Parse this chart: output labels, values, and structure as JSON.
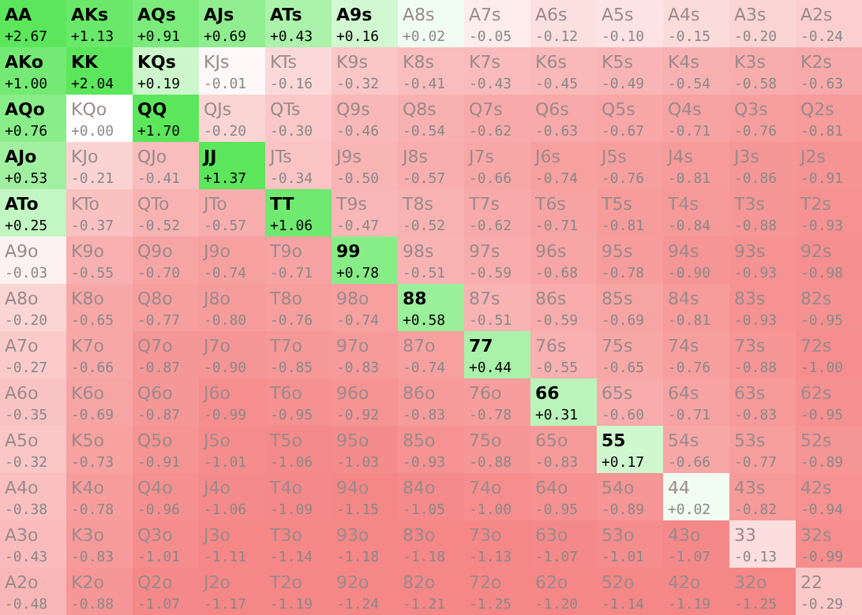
{
  "chart_data": {
    "type": "heatmap",
    "categories": [
      null,
      null,
      null,
      null,
      null,
      null,
      null,
      null,
      null,
      null,
      null,
      null,
      null
    ],
    "y_categories": [
      null,
      null,
      null,
      null,
      null,
      null,
      null,
      null,
      null,
      null,
      null,
      null,
      null
    ],
    "cells": [
      [
        2.67,
        1.13,
        0.91,
        0.69,
        0.43,
        0.16,
        0.02,
        -0.05,
        -0.12,
        -0.1,
        -0.15,
        -0.2,
        -0.24
      ],
      [
        1.0,
        2.04,
        0.19,
        -0.01,
        -0.16,
        -0.32,
        -0.41,
        -0.43,
        -0.45,
        -0.49,
        -0.54,
        -0.58,
        -0.63
      ],
      [
        0.76,
        0.0,
        1.7,
        -0.2,
        -0.3,
        -0.46,
        -0.54,
        -0.62,
        -0.63,
        -0.67,
        -0.71,
        -0.76,
        -0.81
      ],
      [
        0.53,
        -0.21,
        -0.41,
        1.37,
        -0.34,
        -0.5,
        -0.57,
        -0.66,
        -0.74,
        -0.76,
        -0.81,
        -0.86,
        -0.91
      ],
      [
        0.25,
        -0.37,
        -0.52,
        -0.57,
        1.06,
        -0.47,
        -0.52,
        -0.62,
        -0.71,
        -0.81,
        -0.84,
        -0.88,
        -0.93
      ],
      [
        -0.03,
        -0.55,
        -0.7,
        -0.74,
        -0.71,
        0.78,
        -0.51,
        -0.59,
        -0.68,
        -0.78,
        -0.9,
        -0.93,
        -0.98
      ],
      [
        -0.2,
        -0.65,
        -0.77,
        -0.8,
        -0.76,
        -0.74,
        0.58,
        -0.51,
        -0.59,
        -0.69,
        -0.81,
        -0.93,
        -0.95
      ],
      [
        -0.27,
        -0.66,
        -0.87,
        -0.9,
        -0.85,
        -0.83,
        -0.74,
        0.44,
        -0.55,
        -0.65,
        -0.76,
        -0.88,
        -1.0
      ],
      [
        -0.35,
        -0.69,
        -0.87,
        -0.99,
        -0.95,
        -0.92,
        -0.83,
        -0.78,
        0.31,
        -0.6,
        -0.71,
        -0.83,
        -0.95
      ],
      [
        -0.32,
        -0.73,
        -0.91,
        -1.01,
        -1.06,
        -1.03,
        -0.93,
        -0.88,
        -0.83,
        0.17,
        -0.66,
        -0.77,
        -0.89
      ],
      [
        -0.38,
        -0.78,
        -0.96,
        -1.06,
        -1.09,
        -1.15,
        -1.05,
        -1.0,
        -0.95,
        -0.89,
        0.02,
        -0.82,
        -0.94
      ],
      [
        -0.43,
        -0.83,
        -1.01,
        -1.11,
        -1.14,
        -1.18,
        -1.18,
        -1.13,
        -1.07,
        -1.01,
        -1.07,
        -0.13,
        -0.99
      ],
      [
        -0.48,
        -0.88,
        -1.07,
        -1.17,
        -1.19,
        -1.24,
        -1.21,
        -1.25,
        -1.2,
        -1.14,
        -1.19,
        -1.25,
        -0.29
      ]
    ],
    "annotations": [
      "AA",
      "AKs",
      "AQs",
      "AJs",
      "ATs",
      "A9s",
      "A8s",
      "A7s",
      "A6s",
      "A5s",
      "A4s",
      "A3s",
      "A2s",
      "AKo",
      "KK",
      "KQs",
      "KJs",
      "KTs",
      "K9s",
      "K8s",
      "K7s",
      "K6s",
      "K5s",
      "K4s",
      "K3s",
      "K2s",
      "AQo",
      "KQo",
      "QQ",
      "QJs",
      "QTs",
      "Q9s",
      "Q8s",
      "Q7s",
      "Q6s",
      "Q5s",
      "Q4s",
      "Q3s",
      "Q2s",
      "AJo",
      "KJo",
      "QJo",
      "JJ",
      "JTs",
      "J9s",
      "J8s",
      "J7s",
      "J6s",
      "J5s",
      "J4s",
      "J3s",
      "J2s",
      "ATo",
      "KTo",
      "QTo",
      "JTo",
      "TT",
      "T9s",
      "T8s",
      "T7s",
      "T6s",
      "T5s",
      "T4s",
      "T3s",
      "T2s",
      "A9o",
      "K9o",
      "Q9o",
      "J9o",
      "T9o",
      "99",
      "98s",
      "97s",
      "96s",
      "95s",
      "94s",
      "93s",
      "92s",
      "A8o",
      "K8o",
      "Q8o",
      "J8o",
      "T8o",
      "98o",
      "88",
      "87s",
      "86s",
      "85s",
      "84s",
      "83s",
      "82s",
      "A7o",
      "K7o",
      "Q7o",
      "J7o",
      "T7o",
      "97o",
      "87o",
      "77",
      "76s",
      "75s",
      "74s",
      "73s",
      "72s",
      "A6o",
      "K6o",
      "Q6o",
      "J6o",
      "T6o",
      "96o",
      "86o",
      "76o",
      "66",
      "65s",
      "64s",
      "63s",
      "62s",
      "A5o",
      "K5o",
      "Q5o",
      "J5o",
      "T5o",
      "95o",
      "85o",
      "75o",
      "65o",
      "55",
      "54s",
      "53s",
      "52s",
      "A4o",
      "K4o",
      "Q4o",
      "J4o",
      "T4o",
      "94o",
      "84o",
      "74o",
      "64o",
      "54o",
      "44",
      "43s",
      "42s",
      "A3o",
      "K3o",
      "Q3o",
      "J3o",
      "T3o",
      "93o",
      "83o",
      "73o",
      "63o",
      "53o",
      "43o",
      "33",
      "32s",
      "A2o",
      "K2o",
      "Q2o",
      "J2o",
      "T2o",
      "92o",
      "82o",
      "72o",
      "62o",
      "52o",
      "42o",
      "32o",
      "22"
    ],
    "cell_labels": [
      [
        "+2.67",
        "+1.13",
        "+0.91",
        "+0.69",
        "+0.43",
        "+0.16",
        "+0.02",
        "-0.05",
        "-0.12",
        "-0.10",
        "-0.15",
        "-0.20",
        "-0.24"
      ],
      [
        "+1.00",
        "+2.04",
        "+0.19",
        "-0.01",
        "-0.16",
        "-0.32",
        "-0.41",
        "-0.43",
        "-0.45",
        "-0.49",
        "-0.54",
        "-0.58",
        "-0.63"
      ],
      [
        "+0.76",
        "+0.00",
        "+1.70",
        "-0.20",
        "-0.30",
        "-0.46",
        "-0.54",
        "-0.62",
        "-0.63",
        "-0.67",
        "-0.71",
        "-0.76",
        "-0.81"
      ],
      [
        "+0.53",
        "-0.21",
        "-0.41",
        "+1.37",
        "-0.34",
        "-0.50",
        "-0.57",
        "-0.66",
        "-0.74",
        "-0.76",
        "-0.81",
        "-0.86",
        "-0.91"
      ],
      [
        "+0.25",
        "-0.37",
        "-0.52",
        "-0.57",
        "+1.06",
        "-0.47",
        "-0.52",
        "-0.62",
        "-0.71",
        "-0.81",
        "-0.84",
        "-0.88",
        "-0.93"
      ],
      [
        "-0.03",
        "-0.55",
        "-0.70",
        "-0.74",
        "-0.71",
        "+0.78",
        "-0.51",
        "-0.59",
        "-0.68",
        "-0.78",
        "-0.90",
        "-0.93",
        "-0.98"
      ],
      [
        "-0.20",
        "-0.65",
        "-0.77",
        "-0.80",
        "-0.76",
        "-0.74",
        "+0.58",
        "-0.51",
        "-0.59",
        "-0.69",
        "-0.81",
        "-0.93",
        "-0.95"
      ],
      [
        "-0.27",
        "-0.66",
        "-0.87",
        "-0.90",
        "-0.85",
        "-0.83",
        "-0.74",
        "+0.44",
        "-0.55",
        "-0.65",
        "-0.76",
        "-0.88",
        "-1.00"
      ],
      [
        "-0.35",
        "-0.69",
        "-0.87",
        "-0.99",
        "-0.95",
        "-0.92",
        "-0.83",
        "-0.78",
        "+0.31",
        "-0.60",
        "-0.71",
        "-0.83",
        "-0.95"
      ],
      [
        "-0.32",
        "-0.73",
        "-0.91",
        "-1.01",
        "-1.06",
        "-1.03",
        "-0.93",
        "-0.88",
        "-0.83",
        "+0.17",
        "-0.66",
        "-0.77",
        "-0.89"
      ],
      [
        "-0.38",
        "-0.78",
        "-0.96",
        "-1.06",
        "-1.09",
        "-1.15",
        "-1.05",
        "-1.00",
        "-0.95",
        "-0.89",
        "+0.02",
        "-0.82",
        "-0.94"
      ],
      [
        "-0.43",
        "-0.83",
        "-1.01",
        "-1.11",
        "-1.14",
        "-1.18",
        "-1.18",
        "-1.13",
        "-1.07",
        "-1.01",
        "-1.07",
        "-0.13",
        "-0.99"
      ],
      [
        "-0.48",
        "-0.88",
        "-1.07",
        "-1.17",
        "-1.19",
        "-1.24",
        "-1.21",
        "-1.25",
        "-1.20",
        "-1.14",
        "-1.19",
        "-1.25",
        "-0.29"
      ]
    ]
  }
}
